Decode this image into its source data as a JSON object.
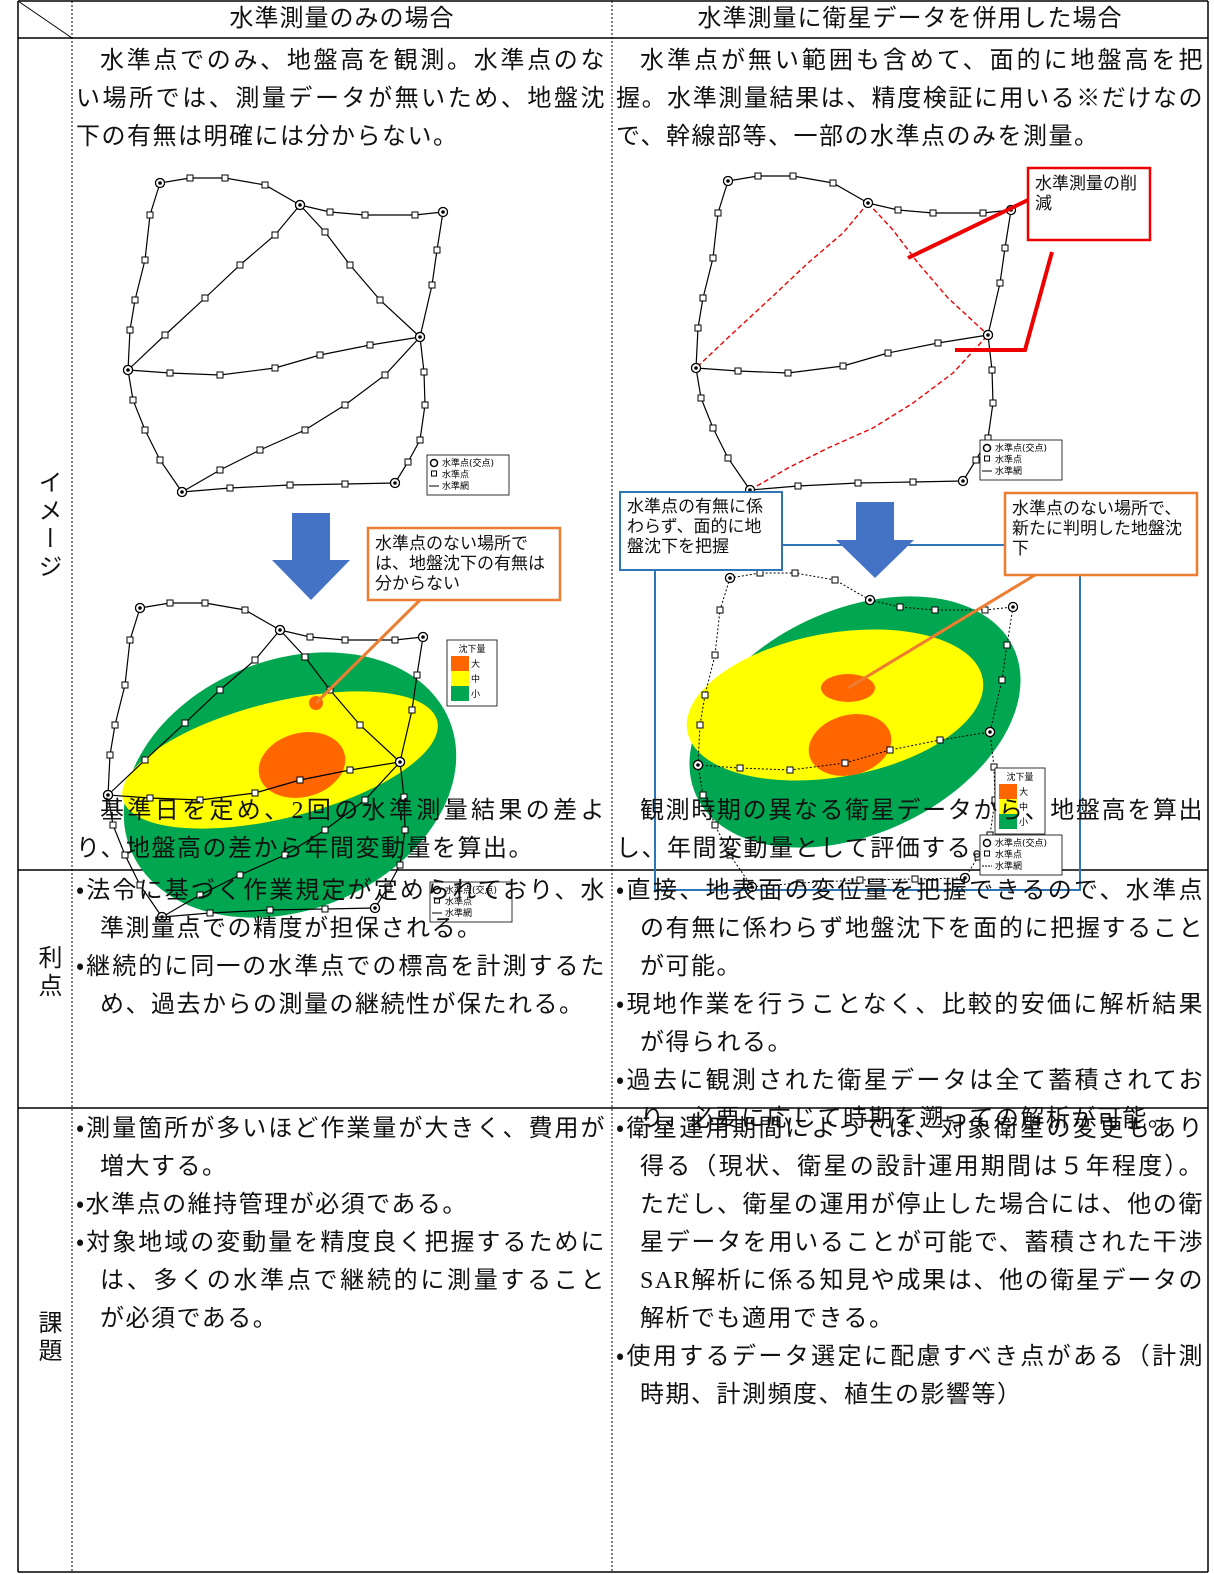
{
  "header": {
    "left": "水準測量のみの場合",
    "right": "水準測量に衛星データを併用した場合"
  },
  "image_row": {
    "label": "イメージ",
    "left_top": "水準点でのみ、地盤高を観測。水準点のない場所では、測量データが無いため、地盤沈下の有無は明確には分からない。",
    "left_bottom": "基準日を定め、2回の水準測量結果の差より、地盤高の差から年間変動量を算出。",
    "right_top": "水準点が無い範囲も含めて、面的に地盤高を把握。水準測量結果は、精度検証に用いる※だけなので、幹線部等、一部の水準点のみを測量。",
    "right_bottom": "観測時期の異なる衛星データから、地盤高を算出し、年間変動量として評価する。"
  },
  "diagram": {
    "legend_network": [
      "水準点(交点)",
      "水準点",
      "水準網"
    ],
    "legend_settlement": {
      "title": "沈下量",
      "levels": [
        "大",
        "中",
        "小"
      ]
    },
    "callout_left": "水準点のない場所では、地盤沈下の有無は分からない",
    "callout_reduction": "水準測量の削減",
    "callout_area": "水準点の有無に係わらず、面的に地盤沈下を把握",
    "callout_new": "水準点のない場所で、新たに判明した地盤沈下"
  },
  "advantages": {
    "label": "利点",
    "left": [
      "・法令に基づく作業規定が定められており、水準測量点での精度が担保される。",
      "・継続的に同一の水準点での標高を計測するため、過去からの測量の継続性が保たれる。"
    ],
    "right": [
      "・直接、地表面の変位量を把握できるので、水準点の有無に係わらず地盤沈下を面的に把握することが可能。",
      "・現地作業を行うことなく、比較的安価に解析結果が得られる。",
      "・過去に観測された衛星データは全て蓄積されており、必要に応じて時期を遡っての解析が可能。"
    ]
  },
  "issues": {
    "label": "課題",
    "left": [
      "・測量箇所が多いほど作業量が大きく、費用が増大する。",
      "・水準点の維持管理が必須である。",
      "・対象地域の変動量を精度良く把握するためには、多くの水準点で継続的に測量することが必須である。"
    ],
    "right": [
      "・衛星運用期間によっては、対象衛星の変更もあり得る（現状、衛星の設計運用期間は５年程度）。ただし、衛星の運用が停止した場合には、他の衛星データを用いることが可能で、蓄積された干渉SAR解析に係る知見や成果は、他の衛星データの解析でも適用できる。",
      "・使用するデータ選定に配慮すべき点がある（計測時期、計測頻度、植生の影響等）"
    ]
  }
}
